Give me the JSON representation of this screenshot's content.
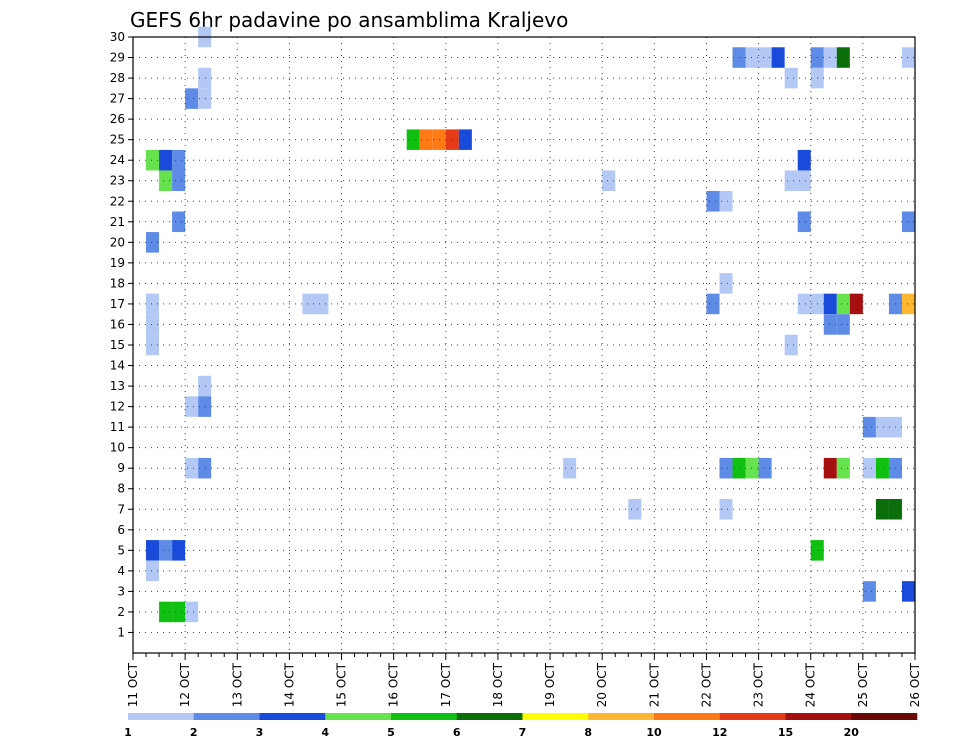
{
  "chart_data": {
    "type": "heatmap",
    "title": "GEFS 6hr padavine po ansamblima Kraljevo",
    "xlabel": "",
    "ylabel": "",
    "x_ticks": [
      "11 OCT",
      "12 OCT",
      "13 OCT",
      "14 OCT",
      "15 OCT",
      "16 OCT",
      "17 OCT",
      "18 OCT",
      "19 OCT",
      "20 OCT",
      "21 OCT",
      "22 OCT",
      "23 OCT",
      "24 OCT",
      "25 OCT",
      "26 OCT"
    ],
    "x_range_days": [
      0,
      15
    ],
    "y_ticks": [
      1,
      2,
      3,
      4,
      5,
      6,
      7,
      8,
      9,
      10,
      11,
      12,
      13,
      14,
      15,
      16,
      17,
      18,
      19,
      20,
      21,
      22,
      23,
      24,
      25,
      26,
      27,
      28,
      29,
      30
    ],
    "y_range": [
      0,
      30
    ],
    "grid": true,
    "time_step_hours": 6,
    "colorbar": {
      "placement": "bottom",
      "labels": [
        "1",
        "2",
        "3",
        "4",
        "5",
        "6",
        "7",
        "8",
        "10",
        "12",
        "15",
        "20"
      ],
      "colors": [
        "#b3c8f5",
        "#5d8be6",
        "#1a4ad9",
        "#66e24f",
        "#10c010",
        "#0b6e0b",
        "#ffff00",
        "#ffb733",
        "#ff7a14",
        "#e63b17",
        "#a50f0f",
        "#6b0808"
      ]
    },
    "cells": [
      {
        "member": 30,
        "step": 5,
        "level": 0
      },
      {
        "member": 29,
        "step": 46,
        "level": 1
      },
      {
        "member": 29,
        "step": 47,
        "level": 0
      },
      {
        "member": 29,
        "step": 48,
        "level": 0
      },
      {
        "member": 29,
        "step": 49,
        "level": 2
      },
      {
        "member": 29,
        "step": 52,
        "level": 1
      },
      {
        "member": 29,
        "step": 53,
        "level": 0
      },
      {
        "member": 29,
        "step": 54,
        "level": 5
      },
      {
        "member": 29,
        "step": 59,
        "level": 0
      },
      {
        "member": 28,
        "step": 5,
        "level": 0
      },
      {
        "member": 28,
        "step": 50,
        "level": 0
      },
      {
        "member": 28,
        "step": 52,
        "level": 0
      },
      {
        "member": 27,
        "step": 4,
        "level": 1
      },
      {
        "member": 27,
        "step": 5,
        "level": 0
      },
      {
        "member": 25,
        "step": 21,
        "level": 4
      },
      {
        "member": 25,
        "step": 22,
        "level": 8
      },
      {
        "member": 25,
        "step": 23,
        "level": 8
      },
      {
        "member": 25,
        "step": 24,
        "level": 9
      },
      {
        "member": 25,
        "step": 25,
        "level": 2
      },
      {
        "member": 24,
        "step": 1,
        "level": 3
      },
      {
        "member": 24,
        "step": 2,
        "level": 2
      },
      {
        "member": 24,
        "step": 3,
        "level": 1
      },
      {
        "member": 24,
        "step": 51,
        "level": 2
      },
      {
        "member": 23,
        "step": 2,
        "level": 3
      },
      {
        "member": 23,
        "step": 3,
        "level": 1
      },
      {
        "member": 23,
        "step": 36,
        "level": 0
      },
      {
        "member": 23,
        "step": 50,
        "level": 0
      },
      {
        "member": 23,
        "step": 51,
        "level": 0
      },
      {
        "member": 22,
        "step": 44,
        "level": 1
      },
      {
        "member": 22,
        "step": 45,
        "level": 0
      },
      {
        "member": 21,
        "step": 3,
        "level": 1
      },
      {
        "member": 21,
        "step": 51,
        "level": 1
      },
      {
        "member": 21,
        "step": 59,
        "level": 1
      },
      {
        "member": 20,
        "step": 1,
        "level": 1
      },
      {
        "member": 18,
        "step": 45,
        "level": 0
      },
      {
        "member": 17,
        "step": 1,
        "level": 0
      },
      {
        "member": 17,
        "step": 13,
        "level": 0
      },
      {
        "member": 17,
        "step": 14,
        "level": 0
      },
      {
        "member": 17,
        "step": 44,
        "level": 1
      },
      {
        "member": 17,
        "step": 51,
        "level": 0
      },
      {
        "member": 17,
        "step": 52,
        "level": 0
      },
      {
        "member": 17,
        "step": 53,
        "level": 2
      },
      {
        "member": 17,
        "step": 54,
        "level": 3
      },
      {
        "member": 17,
        "step": 55,
        "level": 10
      },
      {
        "member": 17,
        "step": 58,
        "level": 1
      },
      {
        "member": 17,
        "step": 59,
        "level": 7
      },
      {
        "member": 16,
        "step": 1,
        "level": 0
      },
      {
        "member": 16,
        "step": 53,
        "level": 1
      },
      {
        "member": 16,
        "step": 54,
        "level": 1
      },
      {
        "member": 15,
        "step": 1,
        "level": 0
      },
      {
        "member": 15,
        "step": 50,
        "level": 0
      },
      {
        "member": 13,
        "step": 5,
        "level": 0
      },
      {
        "member": 12,
        "step": 4,
        "level": 0
      },
      {
        "member": 12,
        "step": 5,
        "level": 1
      },
      {
        "member": 11,
        "step": 56,
        "level": 1
      },
      {
        "member": 11,
        "step": 57,
        "level": 0
      },
      {
        "member": 11,
        "step": 58,
        "level": 0
      },
      {
        "member": 9,
        "step": 4,
        "level": 0
      },
      {
        "member": 9,
        "step": 5,
        "level": 1
      },
      {
        "member": 9,
        "step": 33,
        "level": 0
      },
      {
        "member": 9,
        "step": 45,
        "level": 1
      },
      {
        "member": 9,
        "step": 46,
        "level": 4
      },
      {
        "member": 9,
        "step": 47,
        "level": 3
      },
      {
        "member": 9,
        "step": 48,
        "level": 1
      },
      {
        "member": 9,
        "step": 53,
        "level": 10
      },
      {
        "member": 9,
        "step": 54,
        "level": 3
      },
      {
        "member": 9,
        "step": 56,
        "level": 0
      },
      {
        "member": 9,
        "step": 57,
        "level": 4
      },
      {
        "member": 9,
        "step": 58,
        "level": 1
      },
      {
        "member": 7,
        "step": 38,
        "level": 0
      },
      {
        "member": 7,
        "step": 45,
        "level": 0
      },
      {
        "member": 7,
        "step": 57,
        "level": 5
      },
      {
        "member": 7,
        "step": 58,
        "level": 5
      },
      {
        "member": 5,
        "step": 1,
        "level": 2
      },
      {
        "member": 5,
        "step": 2,
        "level": 1
      },
      {
        "member": 5,
        "step": 3,
        "level": 2
      },
      {
        "member": 5,
        "step": 52,
        "level": 4
      },
      {
        "member": 4,
        "step": 1,
        "level": 0
      },
      {
        "member": 3,
        "step": 56,
        "level": 1
      },
      {
        "member": 3,
        "step": 59,
        "level": 2
      },
      {
        "member": 2,
        "step": 2,
        "level": 4
      },
      {
        "member": 2,
        "step": 3,
        "level": 4
      },
      {
        "member": 2,
        "step": 4,
        "level": 0
      }
    ]
  }
}
